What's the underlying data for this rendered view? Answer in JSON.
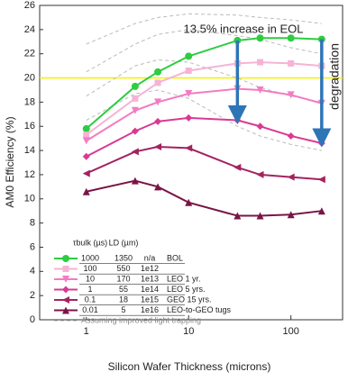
{
  "chart_data": {
    "type": "line",
    "x_label": "Silicon Wafer Thickness (microns)",
    "y_label": "AM0 Efficiency (%)",
    "x": [
      1,
      3,
      5,
      10,
      30,
      50,
      100,
      200
    ],
    "xlim": [
      0.35,
      320
    ],
    "xticks": [
      1,
      10,
      100
    ],
    "log_x": true,
    "ylim": [
      0,
      26
    ],
    "yticks": [
      0,
      2,
      4,
      6,
      8,
      10,
      12,
      14,
      16,
      18,
      20,
      22,
      24,
      26
    ],
    "reference_line": {
      "value": 20,
      "color": "#f2f200"
    },
    "legend_headers": {
      "tau": "τbulk (µs)",
      "ld": "LD (µm)"
    },
    "series": [
      {
        "name": "BOL",
        "tau": 1000,
        "ld": 1350,
        "fluence": "n/a",
        "color": "#2ecc40",
        "marker": "circle",
        "values": [
          15.8,
          19.3,
          20.5,
          21.8,
          23.1,
          23.3,
          23.3,
          23.2
        ]
      },
      {
        "tau": 100,
        "ld": 550,
        "fluence": "1e12",
        "color": "#f5b3d6",
        "marker": "square",
        "values": [
          15.3,
          18.3,
          19.6,
          20.6,
          21.2,
          21.3,
          21.2,
          21.0
        ]
      },
      {
        "name": "LEO 1 yr.",
        "tau": 10,
        "ld": 170,
        "fluence": "1e13",
        "color": "#f27cc3",
        "marker": "tri-down",
        "values": [
          14.8,
          17.3,
          18.0,
          18.7,
          19.1,
          19.0,
          18.6,
          17.9
        ]
      },
      {
        "name": "LEO 5 yrs.",
        "tau": 1,
        "ld": 55,
        "fluence": "1e14",
        "color": "#d93a93",
        "marker": "diamond",
        "values": [
          13.5,
          15.6,
          16.4,
          16.7,
          16.5,
          16.0,
          15.2,
          14.6
        ]
      },
      {
        "name": "GEO 15 yrs.",
        "tau": 0.1,
        "ld": 18,
        "fluence": "1e15",
        "color": "#a3235f",
        "marker": "tri-left",
        "values": [
          12.1,
          13.9,
          14.3,
          14.2,
          12.6,
          12.0,
          11.8,
          11.6
        ]
      },
      {
        "name": "LEO-to-GEO tugs",
        "tau": 0.01,
        "ld": 5,
        "fluence": "1e16",
        "color": "#7a1446",
        "marker": "tri-up",
        "values": [
          10.6,
          11.5,
          11.0,
          9.7,
          8.6,
          8.6,
          8.7,
          9.0
        ]
      }
    ],
    "light_trapping": {
      "name": "Assuming improved light trapping",
      "color": "#bbbbbb",
      "lines": [
        [
          22.8,
          24.5,
          25.0,
          25.3,
          25.2,
          25.0,
          24.8,
          24.5
        ],
        [
          20.5,
          22.8,
          23.6,
          24.0,
          23.5,
          23.2,
          22.5,
          22.0
        ],
        [
          18.5,
          21.0,
          21.5,
          21.3,
          20.0,
          19.2,
          18.5,
          18.0
        ],
        [
          16.5,
          18.7,
          19.0,
          18.3,
          16.0,
          15.2,
          14.5,
          14.0
        ]
      ]
    },
    "annotations": {
      "increase": "13.5% increase in EOL",
      "degradation": "degradation"
    },
    "arrows": [
      {
        "x": 30,
        "from": 23.1,
        "to": 16.5,
        "color": "#2e75b6"
      },
      {
        "x": 200,
        "from": 23.2,
        "to": 14.6,
        "color": "#2e75b6"
      }
    ]
  }
}
